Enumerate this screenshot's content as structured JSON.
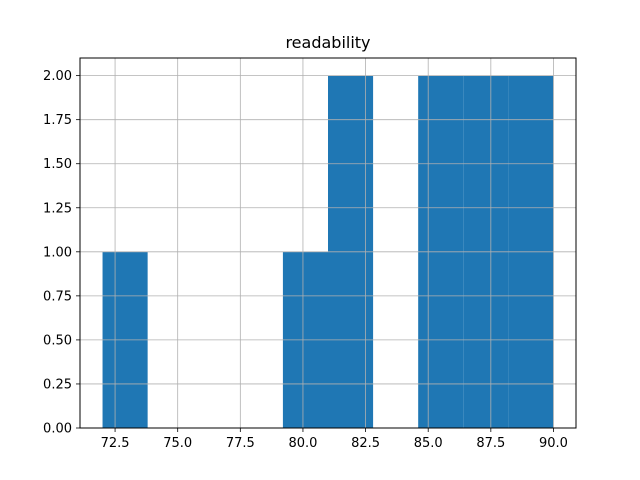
{
  "chart_data": {
    "type": "bar",
    "subtype": "histogram",
    "title": "readability",
    "xlabel": "",
    "ylabel": "",
    "xlim": [
      71.1,
      90.9
    ],
    "ylim": [
      0,
      2.1
    ],
    "grid": true,
    "bar_color": "#1f77b4",
    "x_ticks": [
      "72.5",
      "75.0",
      "77.5",
      "80.0",
      "82.5",
      "85.0",
      "87.5",
      "90.0"
    ],
    "y_ticks": [
      "0.00",
      "0.25",
      "0.50",
      "0.75",
      "1.00",
      "1.25",
      "1.50",
      "1.75",
      "2.00"
    ],
    "bins": [
      {
        "start": 72.0,
        "end": 73.8,
        "count": 1
      },
      {
        "start": 73.8,
        "end": 75.6,
        "count": 0
      },
      {
        "start": 75.6,
        "end": 77.4,
        "count": 0
      },
      {
        "start": 77.4,
        "end": 79.2,
        "count": 0
      },
      {
        "start": 79.2,
        "end": 81.0,
        "count": 1
      },
      {
        "start": 81.0,
        "end": 82.8,
        "count": 2
      },
      {
        "start": 82.8,
        "end": 84.6,
        "count": 0
      },
      {
        "start": 84.6,
        "end": 86.4,
        "count": 2
      },
      {
        "start": 86.4,
        "end": 88.2,
        "count": 2
      },
      {
        "start": 88.2,
        "end": 90.0,
        "count": 2
      }
    ]
  }
}
